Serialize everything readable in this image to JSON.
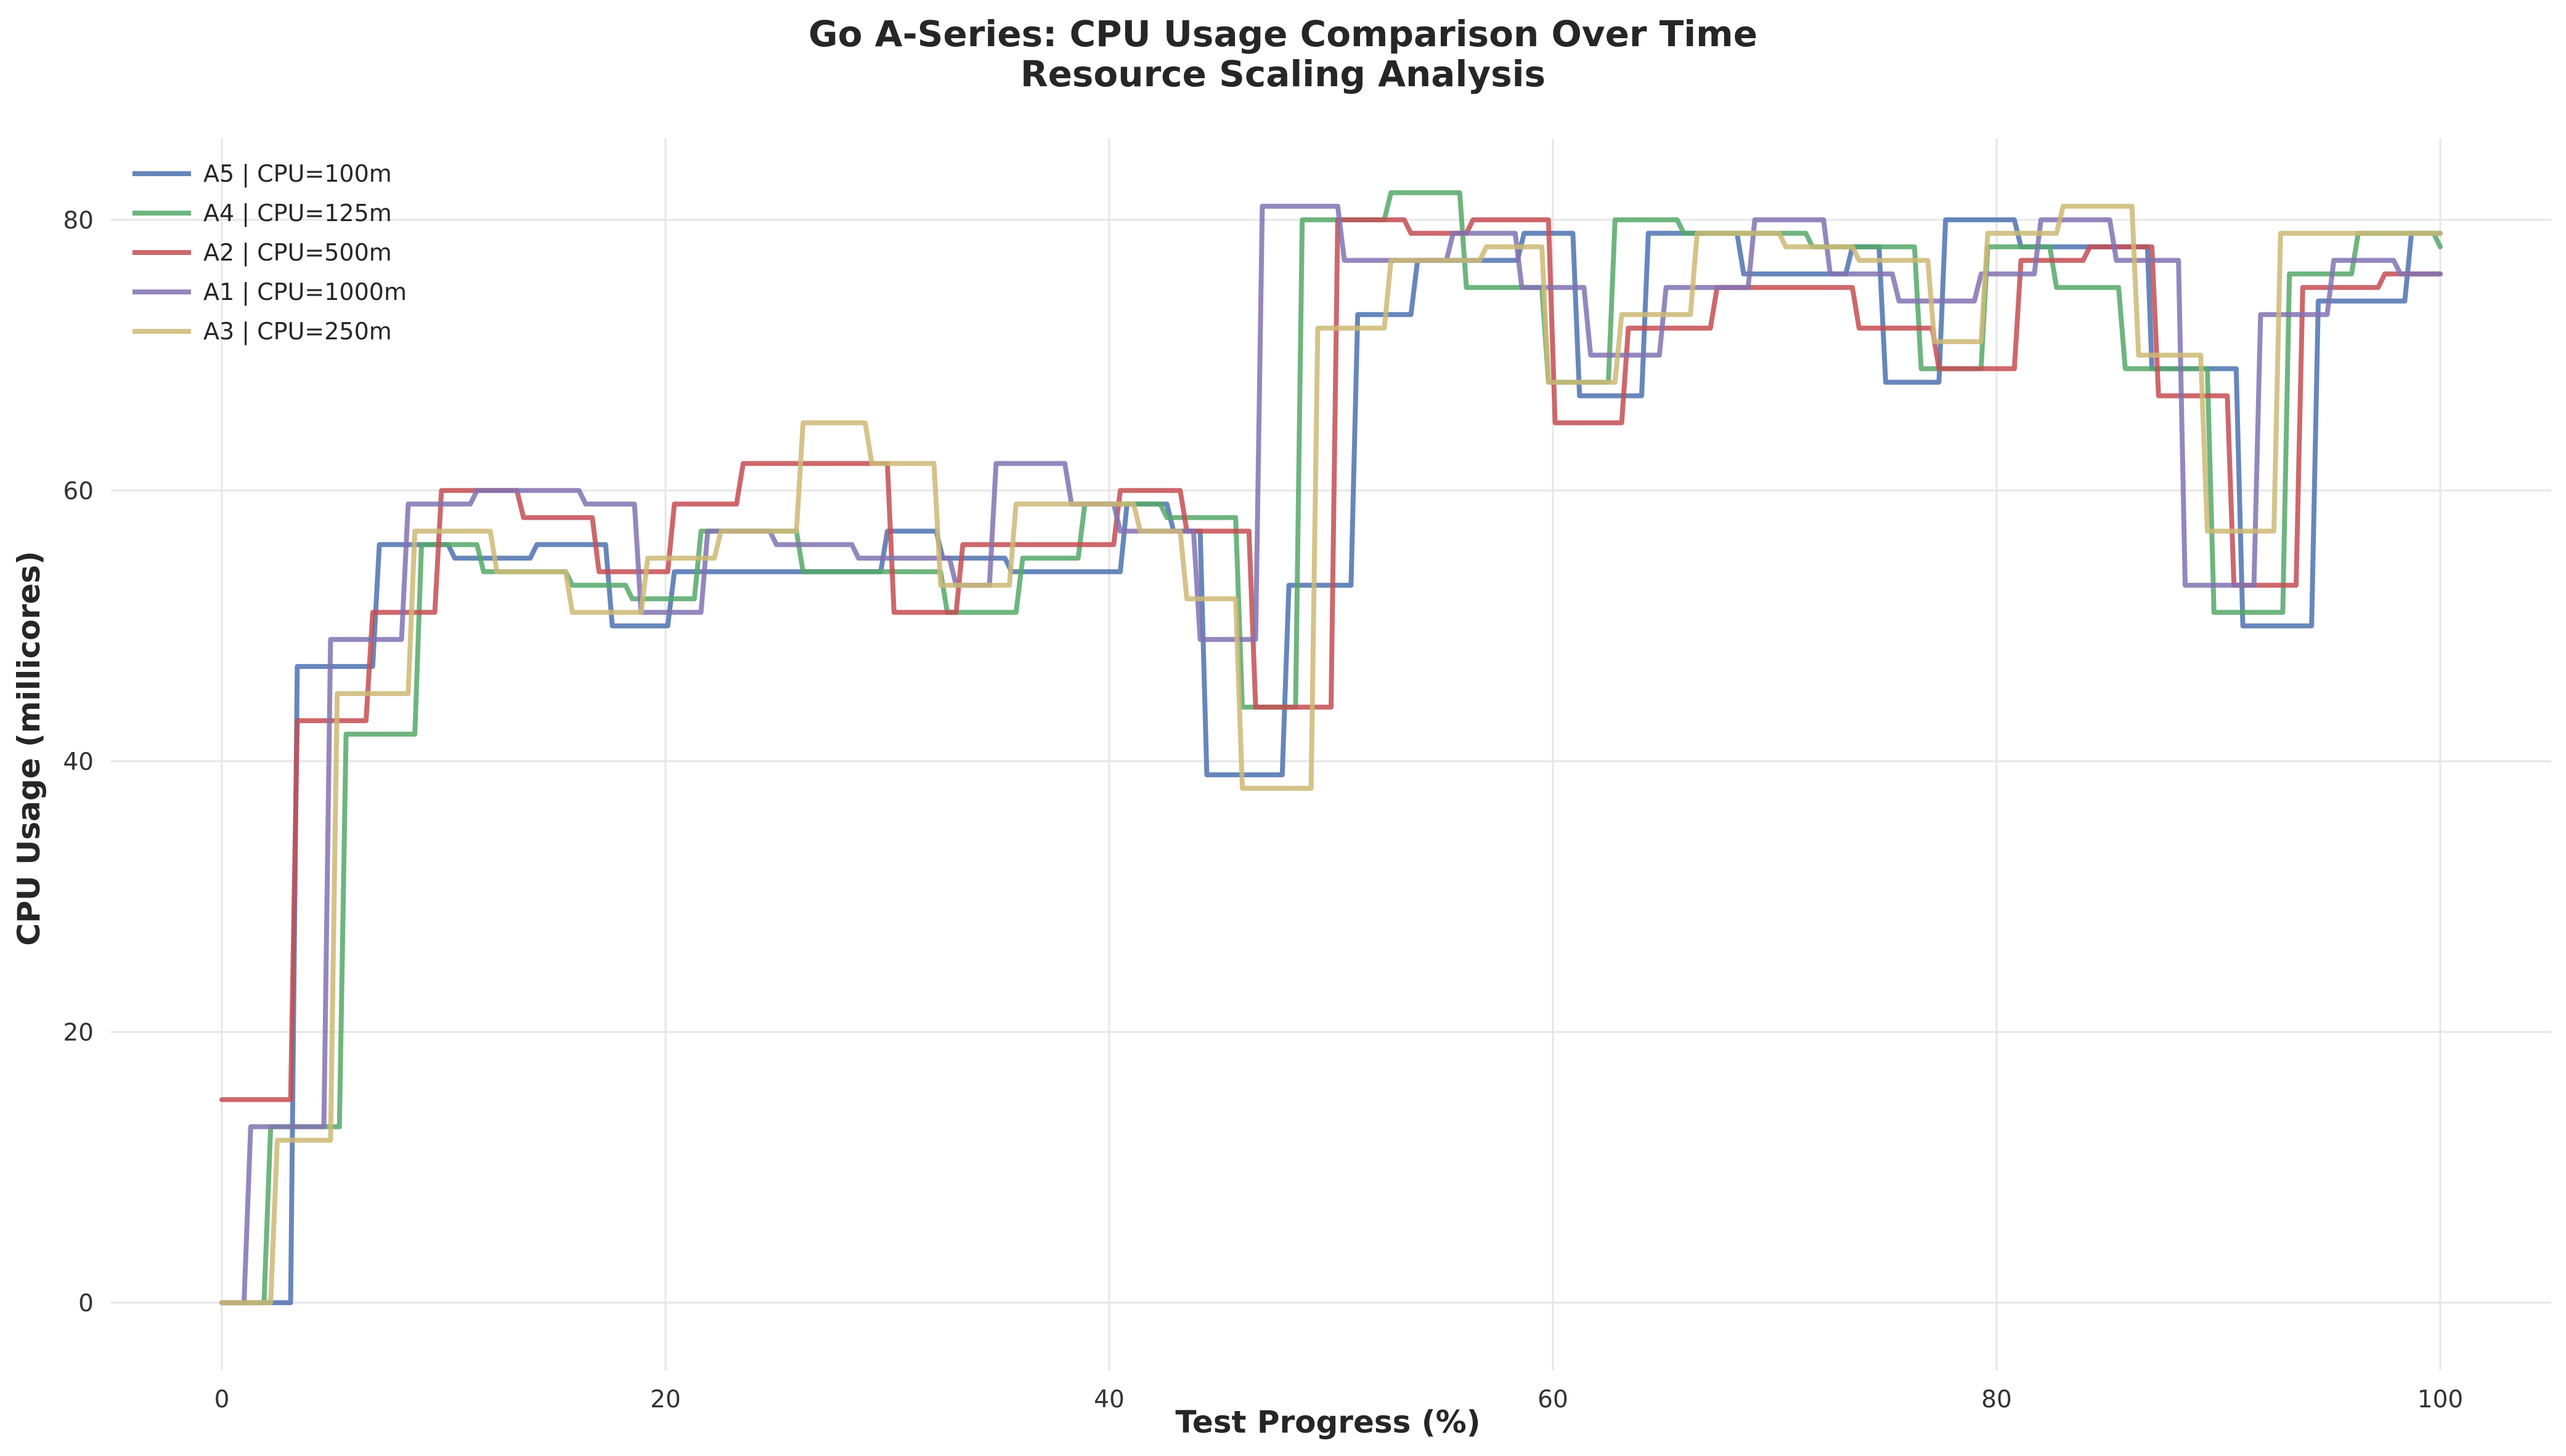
{
  "chart_data": {
    "type": "line",
    "title": "Go A-Series: CPU Usage Comparison Over Time",
    "subtitle": "Resource Scaling Analysis",
    "xlabel": "Test Progress (%)",
    "ylabel": "CPU Usage (millicores)",
    "xlim": [
      -5,
      105
    ],
    "ylim": [
      -5,
      86
    ],
    "xticks": [
      0,
      20,
      40,
      60,
      80,
      100
    ],
    "yticks": [
      0,
      20,
      40,
      60,
      80
    ],
    "grid": true,
    "legend_position": "top-left",
    "step": "post",
    "series": [
      {
        "name": "A5 | CPU=100m",
        "color": "#4c72b0",
        "points": [
          [
            0,
            0
          ],
          [
            3.1,
            0
          ],
          [
            3.4,
            47
          ],
          [
            6.8,
            47
          ],
          [
            7.1,
            56
          ],
          [
            10.2,
            56
          ],
          [
            10.5,
            55
          ],
          [
            13.9,
            55
          ],
          [
            14.2,
            56
          ],
          [
            17.3,
            56
          ],
          [
            17.6,
            50
          ],
          [
            20.1,
            50
          ],
          [
            20.4,
            54
          ],
          [
            29.7,
            54
          ],
          [
            30,
            57
          ],
          [
            32.2,
            57
          ],
          [
            32.5,
            55
          ],
          [
            35.3,
            55
          ],
          [
            35.6,
            54
          ],
          [
            40.5,
            54
          ],
          [
            40.8,
            59
          ],
          [
            42.6,
            59
          ],
          [
            42.9,
            57
          ],
          [
            44.1,
            57
          ],
          [
            44.4,
            39
          ],
          [
            47.8,
            39
          ],
          [
            48.1,
            53
          ],
          [
            50.9,
            53
          ],
          [
            51.2,
            73
          ],
          [
            53.6,
            73
          ],
          [
            53.9,
            77
          ],
          [
            56.3,
            77
          ],
          [
            56.6,
            77
          ],
          [
            58.4,
            77
          ],
          [
            58.7,
            79
          ],
          [
            60.9,
            79
          ],
          [
            61.2,
            67
          ],
          [
            64,
            67
          ],
          [
            64.3,
            79
          ],
          [
            68.3,
            79
          ],
          [
            68.6,
            76
          ],
          [
            73.2,
            76
          ],
          [
            73.5,
            78
          ],
          [
            74.7,
            78
          ],
          [
            75,
            68
          ],
          [
            77.4,
            68
          ],
          [
            77.7,
            80
          ],
          [
            80.8,
            80
          ],
          [
            81.1,
            78
          ],
          [
            86.5,
            78
          ],
          [
            86.8,
            78
          ],
          [
            87,
            69
          ],
          [
            90.8,
            69
          ],
          [
            91.1,
            50
          ],
          [
            94.2,
            50
          ],
          [
            94.5,
            74
          ],
          [
            96.9,
            74
          ],
          [
            97.2,
            74
          ],
          [
            98.4,
            74
          ],
          [
            98.7,
            79
          ],
          [
            100,
            79
          ]
        ]
      },
      {
        "name": "A4 | CPU=125m",
        "color": "#55a868",
        "points": [
          [
            0,
            0
          ],
          [
            1.9,
            0
          ],
          [
            2.2,
            13
          ],
          [
            5.3,
            13
          ],
          [
            5.6,
            42
          ],
          [
            8.7,
            42
          ],
          [
            9,
            56
          ],
          [
            11.5,
            56
          ],
          [
            11.8,
            54
          ],
          [
            15.5,
            54
          ],
          [
            15.8,
            53
          ],
          [
            18.2,
            53
          ],
          [
            18.5,
            52
          ],
          [
            21.3,
            52
          ],
          [
            21.6,
            57
          ],
          [
            25.9,
            57
          ],
          [
            26.2,
            54
          ],
          [
            32.4,
            54
          ],
          [
            32.7,
            51
          ],
          [
            35.8,
            51
          ],
          [
            36.1,
            55
          ],
          [
            38.6,
            55
          ],
          [
            38.9,
            59
          ],
          [
            42.3,
            59
          ],
          [
            42.6,
            58
          ],
          [
            45.7,
            58
          ],
          [
            46,
            44
          ],
          [
            48.4,
            44
          ],
          [
            48.7,
            80
          ],
          [
            52.4,
            80
          ],
          [
            52.7,
            82
          ],
          [
            55.8,
            82
          ],
          [
            56.1,
            75
          ],
          [
            59.5,
            75
          ],
          [
            59.8,
            68
          ],
          [
            62.5,
            68
          ],
          [
            62.8,
            80
          ],
          [
            65.6,
            80
          ],
          [
            65.9,
            79
          ],
          [
            71.4,
            79
          ],
          [
            71.7,
            78
          ],
          [
            76.3,
            78
          ],
          [
            76.6,
            69
          ],
          [
            79.3,
            69
          ],
          [
            79.6,
            78
          ],
          [
            82.4,
            78
          ],
          [
            82.7,
            75
          ],
          [
            85.5,
            75
          ],
          [
            85.8,
            69
          ],
          [
            89.5,
            69
          ],
          [
            89.8,
            51
          ],
          [
            92.9,
            51
          ],
          [
            93.2,
            76
          ],
          [
            96,
            76
          ],
          [
            96.3,
            79
          ],
          [
            99.7,
            79
          ],
          [
            100,
            78
          ]
        ]
      },
      {
        "name": "A2 | CPU=500m",
        "color": "#c44e52",
        "points": [
          [
            0,
            15
          ],
          [
            3.1,
            15
          ],
          [
            3.4,
            43
          ],
          [
            6.5,
            43
          ],
          [
            6.8,
            51
          ],
          [
            9.6,
            51
          ],
          [
            9.9,
            60
          ],
          [
            13.3,
            60
          ],
          [
            13.6,
            58
          ],
          [
            16.7,
            58
          ],
          [
            17,
            54
          ],
          [
            20.1,
            54
          ],
          [
            20.4,
            59
          ],
          [
            23.2,
            59
          ],
          [
            23.5,
            62
          ],
          [
            30,
            62
          ],
          [
            30.3,
            51
          ],
          [
            33.1,
            51
          ],
          [
            33.4,
            56
          ],
          [
            40.2,
            56
          ],
          [
            40.5,
            60
          ],
          [
            43.2,
            60
          ],
          [
            43.5,
            57
          ],
          [
            46.3,
            57
          ],
          [
            46.6,
            44
          ],
          [
            50,
            44
          ],
          [
            50.3,
            80
          ],
          [
            53.3,
            80
          ],
          [
            53.6,
            79
          ],
          [
            56.1,
            79
          ],
          [
            56.4,
            80
          ],
          [
            59.8,
            80
          ],
          [
            60.1,
            65
          ],
          [
            63.1,
            65
          ],
          [
            63.4,
            72
          ],
          [
            67.1,
            72
          ],
          [
            67.4,
            75
          ],
          [
            73.5,
            75
          ],
          [
            73.8,
            72
          ],
          [
            77.1,
            72
          ],
          [
            77.4,
            69
          ],
          [
            80.8,
            69
          ],
          [
            81.1,
            77
          ],
          [
            83.9,
            77
          ],
          [
            84.2,
            78
          ],
          [
            87,
            78
          ],
          [
            87.3,
            67
          ],
          [
            90.4,
            67
          ],
          [
            90.7,
            53
          ],
          [
            93.5,
            53
          ],
          [
            93.8,
            75
          ],
          [
            97.2,
            75
          ],
          [
            97.5,
            76
          ],
          [
            100,
            76
          ]
        ]
      },
      {
        "name": "A1 | CPU=1000m",
        "color": "#8172b2",
        "points": [
          [
            0,
            0
          ],
          [
            1,
            0
          ],
          [
            1.3,
            13
          ],
          [
            4.6,
            13
          ],
          [
            4.9,
            49
          ],
          [
            8.1,
            49
          ],
          [
            8.4,
            59
          ],
          [
            11.2,
            59
          ],
          [
            11.5,
            60
          ],
          [
            16.1,
            60
          ],
          [
            16.4,
            59
          ],
          [
            18.6,
            59
          ],
          [
            18.9,
            51
          ],
          [
            21.6,
            51
          ],
          [
            21.9,
            57
          ],
          [
            24.7,
            57
          ],
          [
            25,
            56
          ],
          [
            28.4,
            56
          ],
          [
            28.7,
            55
          ],
          [
            32.8,
            55
          ],
          [
            33.1,
            53
          ],
          [
            34.6,
            53
          ],
          [
            34.9,
            62
          ],
          [
            38,
            62
          ],
          [
            38.3,
            59
          ],
          [
            40.2,
            59
          ],
          [
            40.5,
            57
          ],
          [
            43.8,
            57
          ],
          [
            44.1,
            49
          ],
          [
            46.6,
            49
          ],
          [
            46.9,
            81
          ],
          [
            50.3,
            81
          ],
          [
            50.6,
            77
          ],
          [
            55.2,
            77
          ],
          [
            55.5,
            79
          ],
          [
            58.3,
            79
          ],
          [
            58.6,
            75
          ],
          [
            61.4,
            75
          ],
          [
            61.7,
            70
          ],
          [
            64.8,
            70
          ],
          [
            65.1,
            75
          ],
          [
            68.8,
            75
          ],
          [
            69.1,
            80
          ],
          [
            72.2,
            80
          ],
          [
            72.5,
            76
          ],
          [
            75.3,
            76
          ],
          [
            75.6,
            74
          ],
          [
            79,
            74
          ],
          [
            79.3,
            76
          ],
          [
            81.7,
            76
          ],
          [
            82,
            80
          ],
          [
            85.1,
            80
          ],
          [
            85.4,
            77
          ],
          [
            88.2,
            77
          ],
          [
            88.5,
            53
          ],
          [
            91.6,
            53
          ],
          [
            91.9,
            73
          ],
          [
            94.9,
            73
          ],
          [
            95.2,
            77
          ],
          [
            97.9,
            77
          ],
          [
            98.2,
            76
          ],
          [
            100,
            76
          ]
        ]
      },
      {
        "name": "A3 | CPU=250m",
        "color": "#ccb974",
        "points": [
          [
            0,
            0
          ],
          [
            2.2,
            0
          ],
          [
            2.5,
            12
          ],
          [
            4.9,
            12
          ],
          [
            5.2,
            45
          ],
          [
            8.4,
            45
          ],
          [
            8.7,
            57
          ],
          [
            12.1,
            57
          ],
          [
            12.4,
            54
          ],
          [
            15.5,
            54
          ],
          [
            15.8,
            51
          ],
          [
            18.9,
            51
          ],
          [
            19.2,
            55
          ],
          [
            22.2,
            55
          ],
          [
            22.5,
            57
          ],
          [
            25.9,
            57
          ],
          [
            26.2,
            65
          ],
          [
            29,
            65
          ],
          [
            29.3,
            62
          ],
          [
            32.1,
            62
          ],
          [
            32.4,
            53
          ],
          [
            35.5,
            53
          ],
          [
            35.8,
            59
          ],
          [
            41.1,
            59
          ],
          [
            41.4,
            57
          ],
          [
            43.2,
            57
          ],
          [
            43.5,
            52
          ],
          [
            45.7,
            52
          ],
          [
            46,
            38
          ],
          [
            49.1,
            38
          ],
          [
            49.4,
            72
          ],
          [
            52.4,
            72
          ],
          [
            52.7,
            77
          ],
          [
            56.7,
            77
          ],
          [
            57,
            78
          ],
          [
            59.5,
            78
          ],
          [
            59.8,
            68
          ],
          [
            62.8,
            68
          ],
          [
            63.1,
            73
          ],
          [
            66.2,
            73
          ],
          [
            66.5,
            79
          ],
          [
            70.2,
            79
          ],
          [
            70.5,
            78
          ],
          [
            73.5,
            78
          ],
          [
            73.8,
            77
          ],
          [
            76.9,
            77
          ],
          [
            77.2,
            71
          ],
          [
            79.3,
            71
          ],
          [
            79.6,
            79
          ],
          [
            82.7,
            79
          ],
          [
            83,
            81
          ],
          [
            86.1,
            81
          ],
          [
            86.4,
            70
          ],
          [
            89.2,
            70
          ],
          [
            89.5,
            57
          ],
          [
            92.5,
            57
          ],
          [
            92.8,
            79
          ],
          [
            100,
            79
          ]
        ]
      }
    ]
  }
}
